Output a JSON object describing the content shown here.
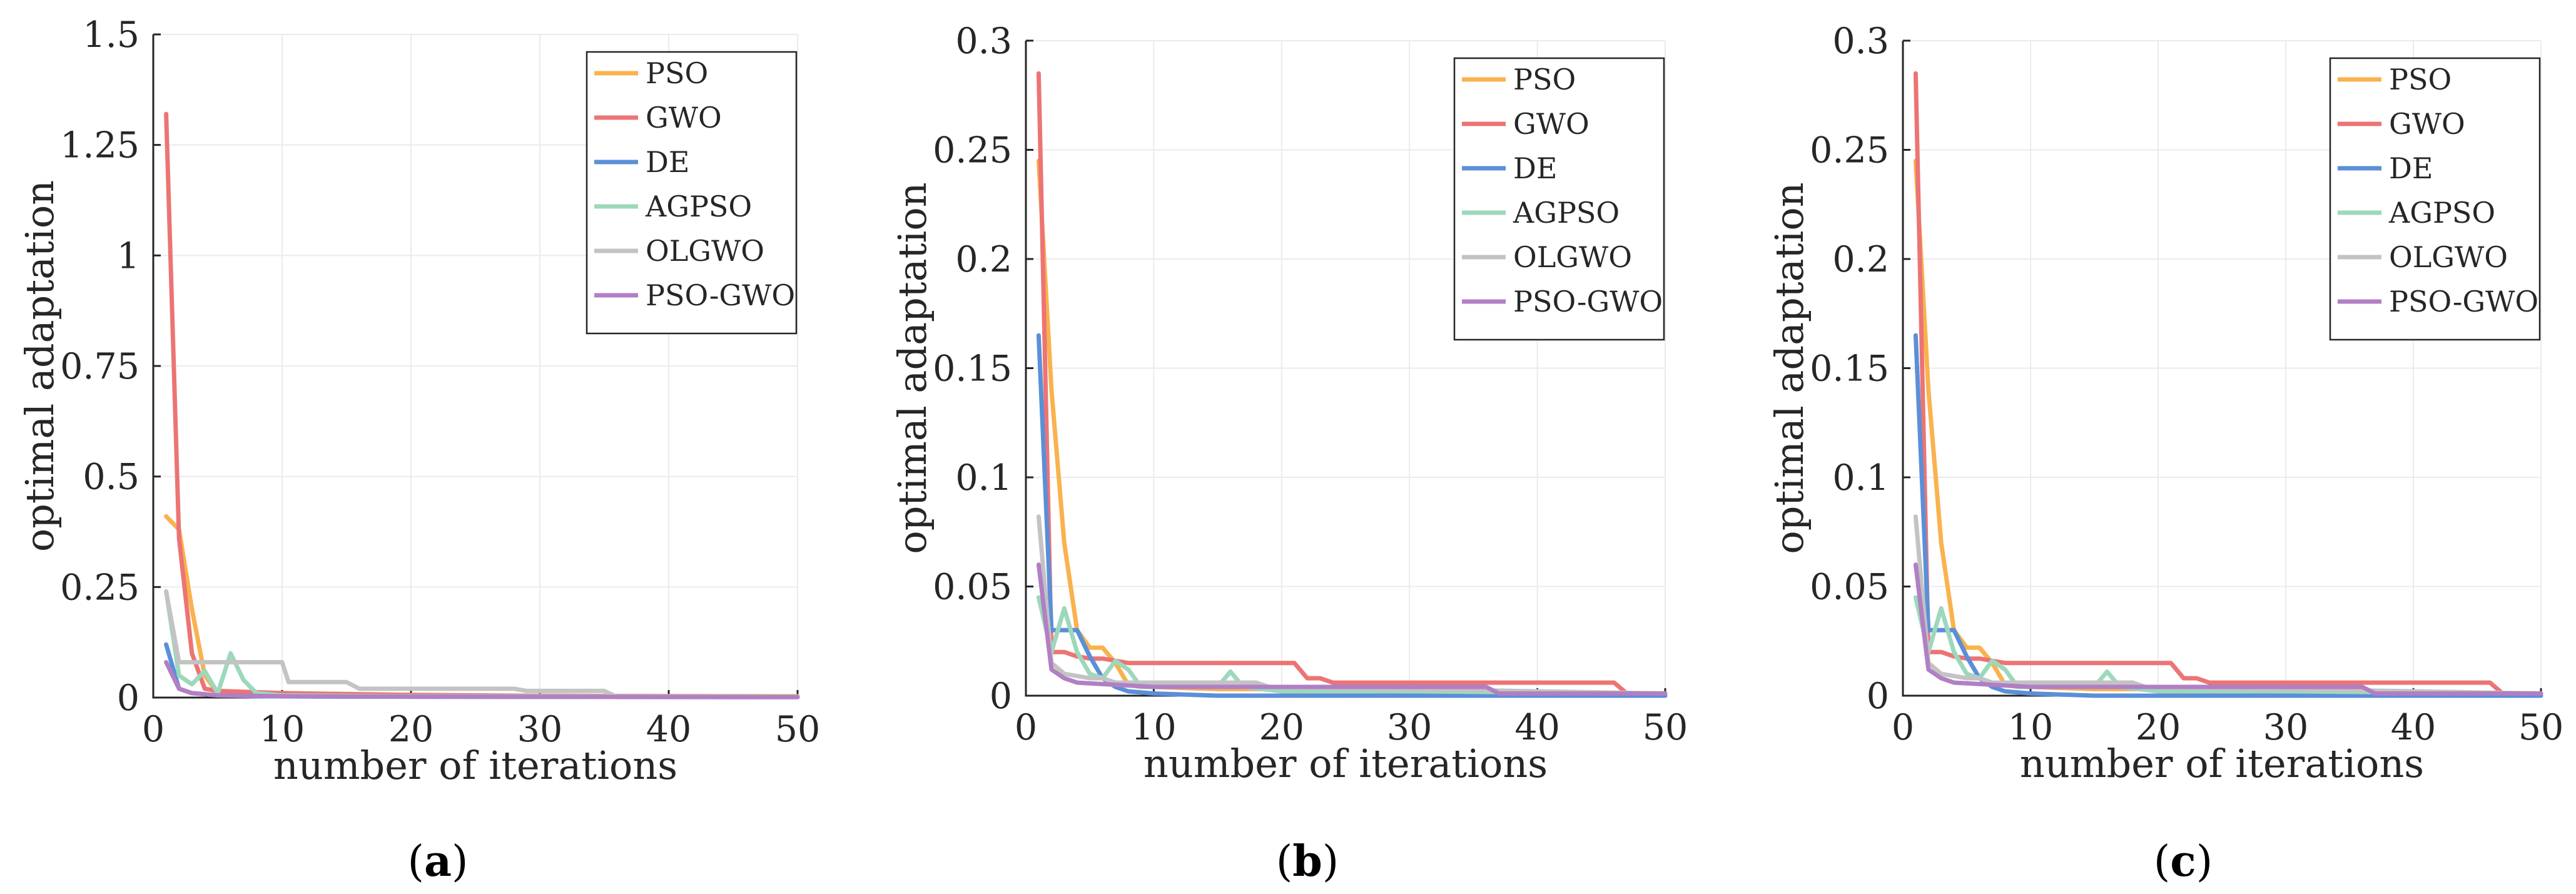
{
  "colors": {
    "PSO": "#f9b24e",
    "GWO": "#ec7474",
    "DE": "#5b8fd8",
    "AGPSO": "#9dd8bb",
    "OLGWO": "#c3c3c3",
    "PSO-GWO": "#b17fc4"
  },
  "chart_data": [
    {
      "type": "line",
      "panel_label": "a",
      "xlabel": "number of iterations",
      "ylabel": "optimal adaptation",
      "xlim": [
        0,
        50
      ],
      "ylim": [
        0,
        1.5
      ],
      "xticks": [
        0,
        10,
        20,
        30,
        40,
        50
      ],
      "yticks": [
        0,
        0.25,
        0.5,
        0.75,
        1,
        1.25,
        1.5
      ],
      "ytick_labels": [
        "0",
        "0.25",
        "0.5",
        "0.75",
        "1",
        "1.25",
        "1.5"
      ],
      "legend_position": "top-right",
      "grid": true,
      "series": [
        {
          "name": "PSO",
          "x": [
            1,
            2,
            3,
            4,
            5,
            6,
            50
          ],
          "y": [
            0.41,
            0.38,
            0.2,
            0.05,
            0.01,
            0.005,
            0.003
          ]
        },
        {
          "name": "GWO",
          "x": [
            1,
            2,
            3,
            4,
            5,
            10,
            20,
            30,
            50
          ],
          "y": [
            1.32,
            0.36,
            0.1,
            0.02,
            0.015,
            0.01,
            0.006,
            0.004,
            0.002
          ]
        },
        {
          "name": "DE",
          "x": [
            1,
            2,
            3,
            5,
            8,
            15,
            50
          ],
          "y": [
            0.12,
            0.02,
            0.01,
            0.005,
            0.003,
            0.002,
            0.001
          ]
        },
        {
          "name": "AGPSO",
          "x": [
            1,
            2,
            3,
            4,
            5,
            6,
            7,
            8,
            10,
            20,
            50
          ],
          "y": [
            0.24,
            0.05,
            0.03,
            0.06,
            0.01,
            0.1,
            0.04,
            0.01,
            0.005,
            0.003,
            0.002
          ]
        },
        {
          "name": "OLGWO",
          "x": [
            1,
            2,
            3,
            5,
            10,
            10.5,
            15,
            16,
            28,
            29,
            35,
            36,
            50
          ],
          "y": [
            0.24,
            0.08,
            0.08,
            0.08,
            0.08,
            0.035,
            0.035,
            0.02,
            0.02,
            0.015,
            0.015,
            0.001,
            0.001
          ]
        },
        {
          "name": "PSO-GWO",
          "x": [
            1,
            2,
            3,
            5,
            10,
            20,
            50
          ],
          "y": [
            0.08,
            0.02,
            0.01,
            0.005,
            0.003,
            0.002,
            0.001
          ]
        }
      ]
    },
    {
      "type": "line",
      "panel_label": "b",
      "xlabel": "number of iterations",
      "ylabel": "optimal adaptation",
      "xlim": [
        0,
        50
      ],
      "ylim": [
        0,
        0.3
      ],
      "xticks": [
        0,
        10,
        20,
        30,
        40,
        50
      ],
      "yticks": [
        0,
        0.05,
        0.1,
        0.15,
        0.2,
        0.25,
        0.3
      ],
      "ytick_labels": [
        "0",
        "0.05",
        "0.1",
        "0.15",
        "0.2",
        "0.25",
        "0.3"
      ],
      "legend_position": "top-right",
      "grid": true,
      "series": [
        {
          "name": "PSO",
          "x": [
            1,
            2,
            3,
            4,
            5,
            6,
            7,
            8,
            9,
            10,
            15,
            20,
            30,
            50
          ],
          "y": [
            0.245,
            0.14,
            0.07,
            0.03,
            0.022,
            0.022,
            0.015,
            0.005,
            0.004,
            0.004,
            0.003,
            0.003,
            0.002,
            0.001
          ]
        },
        {
          "name": "GWO",
          "x": [
            1,
            2,
            3,
            4,
            5,
            6,
            7,
            8,
            21,
            22,
            23,
            24,
            46,
            47,
            50
          ],
          "y": [
            0.285,
            0.02,
            0.02,
            0.018,
            0.017,
            0.017,
            0.016,
            0.015,
            0.015,
            0.008,
            0.008,
            0.006,
            0.006,
            0.001,
            0.001
          ]
        },
        {
          "name": "DE",
          "x": [
            1,
            2,
            3,
            4,
            5,
            6,
            7,
            8,
            10,
            15,
            20,
            30,
            50
          ],
          "y": [
            0.165,
            0.03,
            0.03,
            0.03,
            0.018,
            0.008,
            0.004,
            0.002,
            0.001,
            0.0,
            0.0,
            0.0,
            0.0
          ]
        },
        {
          "name": "AGPSO",
          "x": [
            1,
            2,
            3,
            4,
            5,
            6,
            7,
            8,
            9,
            10,
            15,
            16,
            17,
            20,
            25,
            30,
            50
          ],
          "y": [
            0.045,
            0.02,
            0.04,
            0.02,
            0.01,
            0.008,
            0.016,
            0.012,
            0.004,
            0.004,
            0.004,
            0.011,
            0.004,
            0.002,
            0.002,
            0.002,
            0.001
          ]
        },
        {
          "name": "OLGWO",
          "x": [
            1,
            2,
            3,
            4,
            5,
            6,
            7,
            10,
            18,
            19,
            30,
            40,
            50
          ],
          "y": [
            0.082,
            0.015,
            0.01,
            0.009,
            0.008,
            0.008,
            0.006,
            0.006,
            0.006,
            0.004,
            0.003,
            0.002,
            0.001
          ]
        },
        {
          "name": "PSO-GWO",
          "x": [
            1,
            2,
            3,
            4,
            10,
            15,
            20,
            30,
            36,
            37,
            50
          ],
          "y": [
            0.06,
            0.012,
            0.008,
            0.006,
            0.004,
            0.004,
            0.004,
            0.004,
            0.004,
            0.001,
            0.001
          ]
        }
      ]
    },
    {
      "type": "line",
      "panel_label": "c",
      "xlabel": "number of iterations",
      "ylabel": "optimal adaptation",
      "xlim": [
        0,
        50
      ],
      "ylim": [
        0,
        0.3
      ],
      "xticks": [
        0,
        10,
        20,
        30,
        40,
        50
      ],
      "yticks": [
        0,
        0.05,
        0.1,
        0.15,
        0.2,
        0.25,
        0.3
      ],
      "ytick_labels": [
        "0",
        "0.05",
        "0.1",
        "0.15",
        "0.2",
        "0.25",
        "0.3"
      ],
      "legend_position": "top-right",
      "grid": true,
      "series": [
        {
          "name": "PSO",
          "x": [
            1,
            2,
            3,
            4,
            5,
            6,
            7,
            8,
            9,
            10,
            15,
            20,
            30,
            50
          ],
          "y": [
            0.245,
            0.14,
            0.07,
            0.03,
            0.022,
            0.022,
            0.015,
            0.005,
            0.004,
            0.004,
            0.003,
            0.003,
            0.002,
            0.001
          ]
        },
        {
          "name": "GWO",
          "x": [
            1,
            2,
            3,
            4,
            5,
            6,
            7,
            8,
            21,
            22,
            23,
            24,
            46,
            47,
            50
          ],
          "y": [
            0.285,
            0.02,
            0.02,
            0.018,
            0.017,
            0.017,
            0.016,
            0.015,
            0.015,
            0.008,
            0.008,
            0.006,
            0.006,
            0.001,
            0.001
          ]
        },
        {
          "name": "DE",
          "x": [
            1,
            2,
            3,
            4,
            5,
            6,
            7,
            8,
            10,
            15,
            20,
            30,
            50
          ],
          "y": [
            0.165,
            0.03,
            0.03,
            0.03,
            0.018,
            0.008,
            0.004,
            0.002,
            0.001,
            0.0,
            0.0,
            0.0,
            0.0
          ]
        },
        {
          "name": "AGPSO",
          "x": [
            1,
            2,
            3,
            4,
            5,
            6,
            7,
            8,
            9,
            10,
            15,
            16,
            17,
            20,
            25,
            30,
            50
          ],
          "y": [
            0.045,
            0.02,
            0.04,
            0.02,
            0.01,
            0.008,
            0.016,
            0.012,
            0.004,
            0.004,
            0.004,
            0.011,
            0.004,
            0.002,
            0.002,
            0.002,
            0.001
          ]
        },
        {
          "name": "OLGWO",
          "x": [
            1,
            2,
            3,
            4,
            5,
            6,
            7,
            10,
            18,
            19,
            30,
            40,
            50
          ],
          "y": [
            0.082,
            0.015,
            0.01,
            0.009,
            0.008,
            0.008,
            0.006,
            0.006,
            0.006,
            0.004,
            0.003,
            0.002,
            0.001
          ]
        },
        {
          "name": "PSO-GWO",
          "x": [
            1,
            2,
            3,
            4,
            10,
            15,
            20,
            30,
            36,
            37,
            50
          ],
          "y": [
            0.06,
            0.012,
            0.008,
            0.006,
            0.004,
            0.004,
            0.004,
            0.004,
            0.004,
            0.001,
            0.001
          ]
        }
      ]
    }
  ]
}
